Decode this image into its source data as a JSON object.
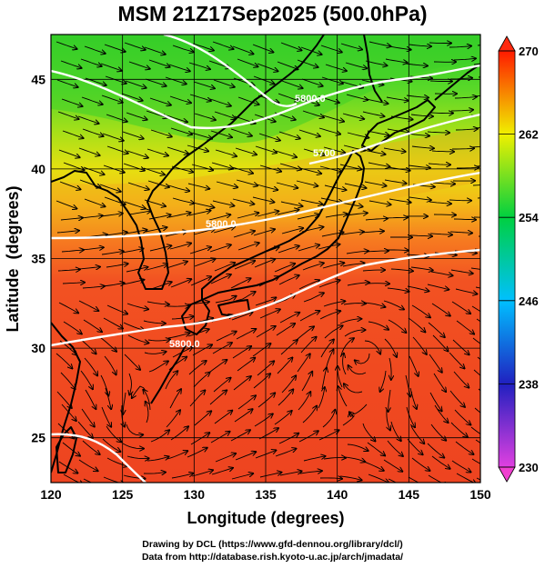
{
  "title": "MSM 21Z17Sep2025 (500.0hPa)",
  "x_axis": {
    "label": "Longitude (degrees)",
    "range": [
      120,
      150
    ],
    "ticks": [
      120,
      125,
      130,
      135,
      140,
      145,
      150
    ]
  },
  "y_axis": {
    "label": "Latitude  (degrees)",
    "range": [
      22.5,
      47.5
    ],
    "ticks": [
      25,
      30,
      35,
      40,
      45
    ]
  },
  "colorbar": {
    "range": [
      230,
      270
    ],
    "ticks": [
      230,
      238,
      246,
      254,
      262,
      270
    ],
    "colors": [
      "#e040e0",
      "#2020c0",
      "#00c0ff",
      "#00d040",
      "#f0f000",
      "#ff1a00"
    ]
  },
  "contours": {
    "color": "#ffffff",
    "labels": [
      "5800.0",
      "5700",
      "5800.0",
      "5800.0"
    ]
  },
  "credits": {
    "line1": "Drawing by DCL (https://www.gfd-dennou.org/library/dcl/)",
    "line2": "Data from http://database.rish.kyoto-u.ac.jp/arch/jmadata/"
  }
}
